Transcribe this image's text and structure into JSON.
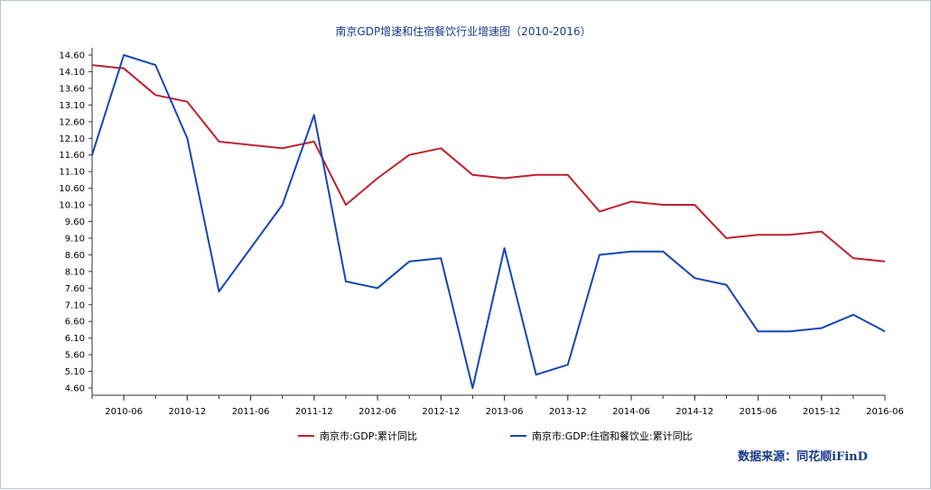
{
  "chart_data": {
    "type": "line",
    "title": "南京GDP增速和住宿餐饮行业增速图（2010-2016）",
    "yticks": [
      "14.60",
      "14.10",
      "13.60",
      "13.10",
      "12.60",
      "12.10",
      "11.60",
      "11.10",
      "10.60",
      "10.10",
      "9.60",
      "9.10",
      "8.60",
      "8.10",
      "7.60",
      "7.10",
      "6.60",
      "6.10",
      "5.60",
      "5.10",
      "4.60"
    ],
    "ylim": [
      4.6,
      14.6
    ],
    "xlim": [
      "2010-03",
      "2016-06"
    ],
    "xticks": [
      "2010-06",
      "2010-12",
      "2011-06",
      "2011-12",
      "2012-06",
      "2012-12",
      "2013-06",
      "2013-12",
      "2014-06",
      "2014-12",
      "2015-06",
      "2015-12",
      "2016-06"
    ],
    "x": [
      "2010-03",
      "2010-06",
      "2010-09",
      "2010-12",
      "2011-03",
      "2011-06",
      "2011-09",
      "2011-12",
      "2012-03",
      "2012-06",
      "2012-09",
      "2012-12",
      "2013-03",
      "2013-06",
      "2013-09",
      "2013-12",
      "2014-03",
      "2014-06",
      "2014-09",
      "2014-12",
      "2015-03",
      "2015-06",
      "2015-09",
      "2015-12",
      "2016-03",
      "2016-06"
    ],
    "series": [
      {
        "name": "南京市:GDP:累计同比",
        "color": "#c0202e",
        "values": [
          14.3,
          14.2,
          13.4,
          13.2,
          12.0,
          null,
          11.8,
          12.0,
          10.1,
          10.9,
          11.6,
          11.8,
          11.0,
          10.9,
          11.0,
          11.0,
          9.9,
          10.2,
          10.1,
          10.1,
          9.1,
          9.2,
          9.2,
          9.3,
          8.5,
          8.4
        ]
      },
      {
        "name": "南京市:GDP:住宿和餐饮业:累计同比",
        "color": "#1646b4",
        "values": [
          11.6,
          14.6,
          14.3,
          12.1,
          7.5,
          null,
          10.1,
          12.8,
          7.8,
          7.6,
          8.4,
          8.5,
          4.6,
          8.8,
          5.0,
          5.3,
          8.6,
          8.7,
          8.7,
          7.9,
          7.7,
          6.3,
          6.3,
          6.4,
          6.8,
          6.3
        ]
      }
    ],
    "legend_position": "bottom",
    "grid": false,
    "source": "数据来源：同花顺iFinD"
  }
}
